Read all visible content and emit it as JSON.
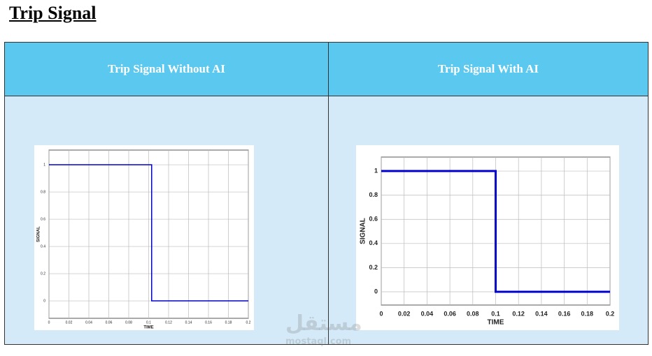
{
  "header": {
    "title": "Trip Signal"
  },
  "table": {
    "headers": [
      "Trip Signal Without AI",
      "Trip Signal With AI"
    ]
  },
  "watermark": [
    "مستقل",
    "mostaql.com"
  ],
  "chart_data": [
    {
      "type": "line",
      "xlabel": "TIME",
      "ylabel": "SIGNAL",
      "x": [
        0,
        0.103,
        0.103,
        0.2
      ],
      "series": [
        {
          "color": "#0000cc",
          "values": [
            1,
            1,
            0,
            0
          ]
        }
      ],
      "xlim": [
        0,
        0.2
      ],
      "xticks": [
        0,
        0.02,
        0.04,
        0.06,
        0.08,
        0.1,
        0.12,
        0.14,
        0.16,
        0.18,
        0.2
      ],
      "ylim": [
        -0.128,
        1.108
      ],
      "yticks": [
        0,
        0.2,
        0.4,
        0.6,
        0.8,
        1
      ],
      "grid": true
    },
    {
      "type": "line",
      "xlabel": "TIME",
      "ylabel": "SIGNAL",
      "x": [
        0,
        0.1,
        0.1,
        0.2
      ],
      "series": [
        {
          "color": "#0000cc",
          "values": [
            1,
            1,
            0,
            0
          ]
        }
      ],
      "xlim": [
        0,
        0.2
      ],
      "xticks": [
        0,
        0.02,
        0.04,
        0.06,
        0.08,
        0.1,
        0.12,
        0.14,
        0.16,
        0.18,
        0.2
      ],
      "ylim": [
        -0.11,
        1.116
      ],
      "yticks": [
        0,
        0.2,
        0.4,
        0.6,
        0.8,
        1
      ],
      "grid": true
    }
  ]
}
